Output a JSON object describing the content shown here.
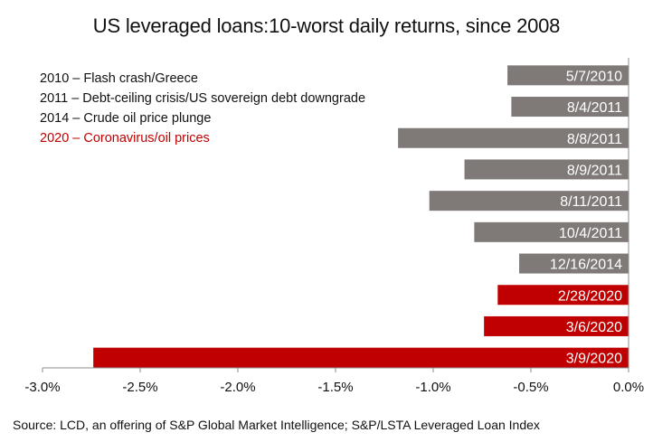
{
  "chart_data": {
    "type": "bar",
    "orientation": "horizontal",
    "title": "US leveraged loans:10-worst daily returns, since 2008",
    "categories": [
      "5/7/2010",
      "8/4/2011",
      "8/8/2011",
      "8/9/2011",
      "8/11/2011",
      "10/4/2011",
      "12/16/2014",
      "2/28/2020",
      "3/6/2020",
      "3/9/2020"
    ],
    "values": [
      -0.62,
      -0.6,
      -1.18,
      -0.84,
      -1.02,
      -0.79,
      -0.56,
      -0.67,
      -0.74,
      -2.74
    ],
    "highlight": [
      false,
      false,
      false,
      false,
      false,
      false,
      false,
      true,
      true,
      true
    ],
    "xlim": [
      -3.0,
      0.0
    ],
    "xticks": [
      "-3.0%",
      "-2.5%",
      "-2.0%",
      "-1.5%",
      "-1.0%",
      "-0.5%",
      "0.0%"
    ],
    "xtick_values": [
      -3.0,
      -2.5,
      -2.0,
      -1.5,
      -1.0,
      -0.5,
      0.0
    ],
    "xlabel": "",
    "ylabel": "",
    "units": "%",
    "grid": false
  },
  "legend": [
    {
      "text": "2010 – Flash crash/Greece",
      "color": "#111111"
    },
    {
      "text": "2011 – Debt-ceiling crisis/US sovereign debt downgrade",
      "color": "#111111"
    },
    {
      "text": "2014 – Crude oil price plunge",
      "color": "#111111"
    },
    {
      "text": "2020 – Coronavirus/oil prices",
      "color": "#c00000"
    }
  ],
  "source": "Source: LCD, an offering of S&P Global Market Intelligence; S&P/LSTA Leveraged Loan Index",
  "colors": {
    "gray_bar": "#7f7a78",
    "red_bar": "#c00000",
    "axis": "#8c8c8c",
    "bar_label": "#ffffff"
  }
}
